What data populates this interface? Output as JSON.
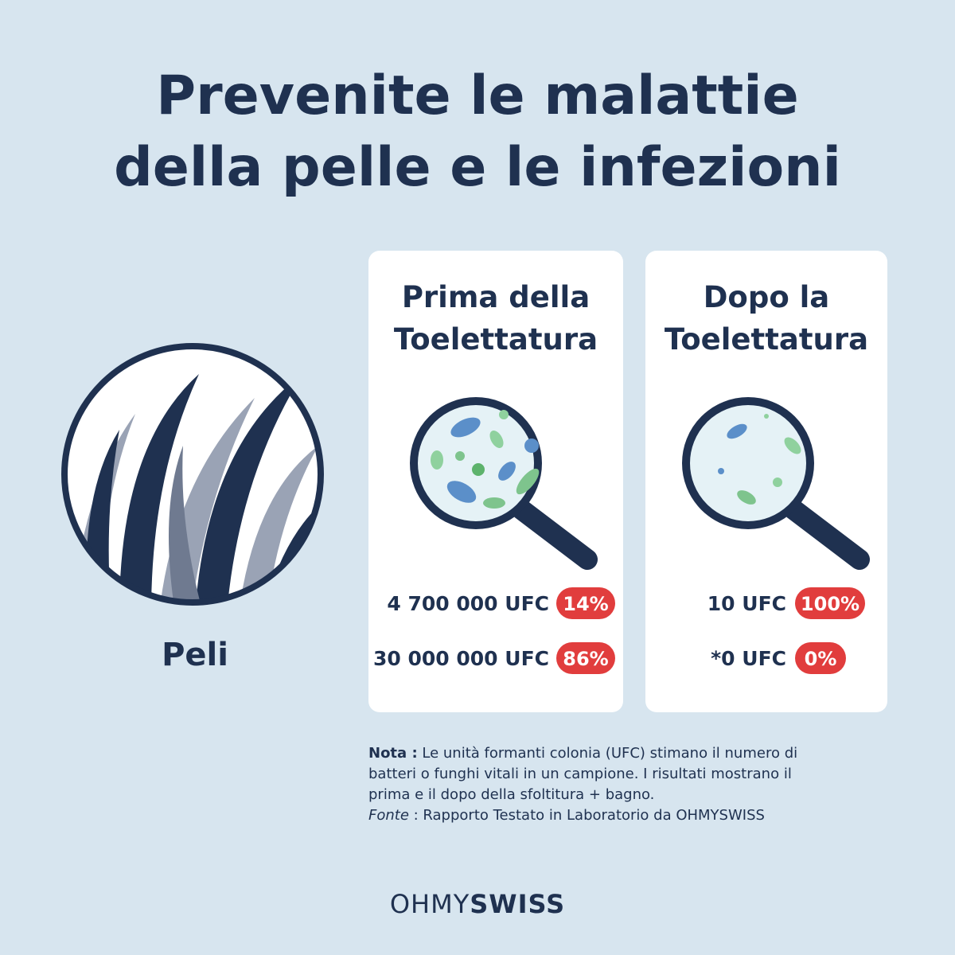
{
  "header": {
    "title_lines": [
      "Prevenite le malattie",
      "della pelle e le infezioni"
    ]
  },
  "hair": {
    "label": "Peli"
  },
  "panels": [
    {
      "heading_lines": [
        "Prima della",
        "Toelettatura"
      ],
      "rows": [
        {
          "amount": "4 700 000 UFC",
          "badge": "14%"
        },
        {
          "amount": "30 000 000 UFC",
          "badge": "86%"
        }
      ]
    },
    {
      "heading_lines": [
        "Dopo la",
        "Toelettatura"
      ],
      "rows": [
        {
          "amount": "10 UFC",
          "badge": "100%"
        },
        {
          "amount": "*0 UFC",
          "badge": "0%"
        }
      ]
    }
  ],
  "note": {
    "label": "Nota :",
    "lines": [
      "Le unità formanti colonia (UFC) stimano il numero di",
      "batteri o funghi vitali in un campione. I risultati mostrano il",
      "prima e il dopo della sfoltitura + bagno."
    ],
    "source_label": "Fonte",
    "source_text": " : Rapporto Testato in Laboratorio da OHMYSWISS"
  },
  "brand": {
    "light": "OHMY",
    "bold": "SWISS"
  }
}
